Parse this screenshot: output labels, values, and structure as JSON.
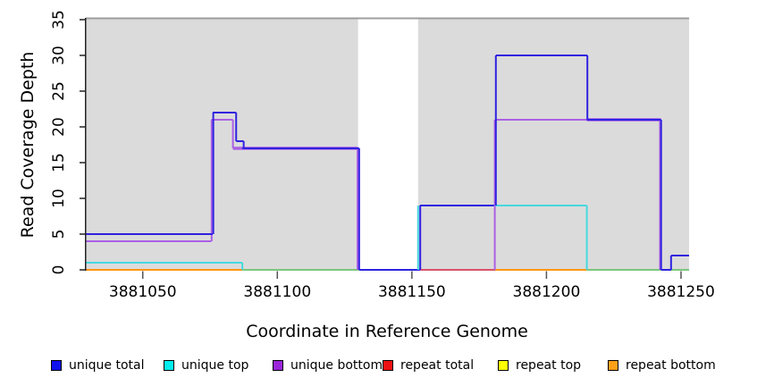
{
  "chart_data": {
    "type": "line",
    "subtype": "step-coverage-plot",
    "title": "",
    "xlabel": "Coordinate in Reference Genome",
    "ylabel": "Read Coverage Depth",
    "grid": false,
    "legend_position": "bottom",
    "xlim": [
      3881029,
      3881253
    ],
    "ylim": [
      0,
      35
    ],
    "x_ticks": [
      3881050,
      3881100,
      3881150,
      3881200,
      3881250
    ],
    "y_ticks": [
      0,
      5,
      10,
      15,
      20,
      25,
      30,
      35
    ],
    "background_color_covered": "#dbdbdb",
    "top_boundary_line": {
      "y": 35,
      "color": "#9e9e9e"
    },
    "gray_background_regions": [
      [
        3881029,
        3881130
      ],
      [
        3881152.3,
        3881253
      ]
    ],
    "white_gap_region": [
      3881130,
      3881152.3
    ],
    "layout": {
      "plot_left": 96.5,
      "plot_right": 771,
      "plot_top": 22,
      "plot_bottom": 302,
      "x_min": 3881029,
      "x_max": 3881253,
      "y_min": 0,
      "y_max": 35
    },
    "series": [
      {
        "name": "unique total",
        "color": "#2f22e0",
        "steps": [
          [
            3881029,
            5
          ],
          [
            3881076,
            22
          ],
          [
            3881085,
            18
          ],
          [
            3881087,
            17
          ],
          [
            3881130,
            0
          ],
          [
            3881153,
            9
          ],
          [
            3881181,
            30
          ],
          [
            3881215,
            21
          ],
          [
            3881243,
            0
          ],
          [
            3881246,
            2
          ],
          [
            3881253,
            2
          ]
        ]
      },
      {
        "name": "unique top",
        "color": "#45d9e0",
        "steps": [
          [
            3881029,
            1
          ],
          [
            3881087,
            0
          ],
          [
            3881153,
            9
          ],
          [
            3881215,
            0
          ],
          [
            3881253,
            0
          ]
        ]
      },
      {
        "name": "unique bottom",
        "color": "#ab60e4",
        "steps": [
          [
            3881029,
            4
          ],
          [
            3881076,
            21
          ],
          [
            3881084,
            17
          ],
          [
            3881130,
            0
          ],
          [
            3881181,
            21
          ],
          [
            3881243,
            0
          ],
          [
            3881253,
            0
          ]
        ]
      },
      {
        "name": "repeat total",
        "color": "#d8536b",
        "steps": [
          [
            3881029,
            0
          ],
          [
            3881253,
            0
          ]
        ]
      },
      {
        "name": "repeat top",
        "color": "#ffff00",
        "steps": [
          [
            3881029,
            0
          ],
          [
            3881253,
            0
          ]
        ]
      },
      {
        "name": "repeat bottom",
        "color": "#ff9614",
        "steps": [
          [
            3881029,
            0
          ],
          [
            3881253,
            0
          ]
        ]
      }
    ],
    "unlabeled_green_baseline_segments": [
      [
        3881087,
        3881130
      ],
      [
        3881215,
        3881253
      ]
    ],
    "visible_segments": [
      {
        "t": "h",
        "y": 0,
        "x1": 3881087,
        "x2": 3881130.4,
        "c": "#7cc87c"
      },
      {
        "t": "h",
        "y": 0,
        "x1": 3881215,
        "x2": 3881253,
        "c": "#7cc87c"
      },
      {
        "t": "h",
        "y": 0,
        "x1": 3881029,
        "x2": 3881087,
        "c": "#ff9614"
      },
      {
        "t": "h",
        "y": 0,
        "x1": 3881181,
        "x2": 3881215,
        "c": "#ff9614"
      },
      {
        "t": "h",
        "y": 0,
        "x1": 3881153,
        "x2": 3881181,
        "c": "#d8536b"
      },
      {
        "t": "h",
        "y": 1,
        "x1": 3881029,
        "x2": 3881087,
        "c": "#45d9e0"
      },
      {
        "t": "v",
        "x": 3881087,
        "y1": 0,
        "y2": 1,
        "c": "#45d9e0"
      },
      {
        "t": "h",
        "y": 4,
        "x1": 3881029,
        "x2": 3881075.5,
        "c": "#ab60e4"
      },
      {
        "t": "v",
        "x": 3881075.6,
        "y1": 4,
        "y2": 21,
        "c": "#ab60e4"
      },
      {
        "t": "h",
        "y": 21,
        "x1": 3881075.5,
        "x2": 3881083.5,
        "c": "#ab60e4"
      },
      {
        "t": "v",
        "x": 3881083.5,
        "y1": 17,
        "y2": 21,
        "c": "#ab60e4"
      },
      {
        "t": "h",
        "y": 17,
        "x1": 3881083.5,
        "x2": 3881130,
        "c": "#ab60e4",
        "w": 3.5
      },
      {
        "t": "v",
        "x": 3881129.8,
        "y1": 0,
        "y2": 17,
        "c": "#ab60e4"
      },
      {
        "t": "h",
        "y": 5,
        "x1": 3881029,
        "x2": 3881076,
        "c": "#2f22e0"
      },
      {
        "t": "v",
        "x": 3881076.2,
        "y1": 5,
        "y2": 22,
        "c": "#2f22e0"
      },
      {
        "t": "h",
        "y": 22,
        "x1": 3881076,
        "x2": 3881084.7,
        "c": "#2f22e0"
      },
      {
        "t": "v",
        "x": 3881084.7,
        "y1": 18,
        "y2": 22,
        "c": "#2f22e0"
      },
      {
        "t": "h",
        "y": 18,
        "x1": 3881084.7,
        "x2": 3881087.5,
        "c": "#2f22e0"
      },
      {
        "t": "v",
        "x": 3881087.5,
        "y1": 17,
        "y2": 18,
        "c": "#2f22e0"
      },
      {
        "t": "h",
        "y": 17,
        "x1": 3881087,
        "x2": 3881130.4,
        "c": "#2f22e0"
      },
      {
        "t": "v",
        "x": 3881130.4,
        "y1": 0,
        "y2": 17,
        "c": "#2f22e0"
      },
      {
        "t": "h",
        "y": 0,
        "x1": 3881130.4,
        "x2": 3881153,
        "c": "#2f22e0"
      },
      {
        "t": "v",
        "x": 3881152.3,
        "y1": 0,
        "y2": 9,
        "c": "#45d9e0"
      },
      {
        "t": "v",
        "x": 3881153.1,
        "y1": 0,
        "y2": 9,
        "c": "#2f22e0"
      },
      {
        "t": "h",
        "y": 9,
        "x1": 3881153,
        "x2": 3881181.2,
        "c": "#2f22e0"
      },
      {
        "t": "v",
        "x": 3881180.8,
        "y1": 0,
        "y2": 21,
        "c": "#ab60e4"
      },
      {
        "t": "h",
        "y": 9,
        "x1": 3881181,
        "x2": 3881215,
        "c": "#45d9e0"
      },
      {
        "t": "v",
        "x": 3881215,
        "y1": 0,
        "y2": 9,
        "c": "#45d9e0"
      },
      {
        "t": "h",
        "y": 21,
        "x1": 3881181,
        "x2": 3881215,
        "c": "#ab60e4"
      },
      {
        "t": "h",
        "y": 21,
        "x1": 3881215,
        "x2": 3881242.5,
        "c": "#ab60e4",
        "w": 3.5
      },
      {
        "t": "v",
        "x": 3881242.2,
        "y1": 0,
        "y2": 21,
        "c": "#ab60e4"
      },
      {
        "t": "v",
        "x": 3881181.2,
        "y1": 9,
        "y2": 30,
        "c": "#2f22e0"
      },
      {
        "t": "h",
        "y": 30,
        "x1": 3881181.2,
        "x2": 3881215.2,
        "c": "#2f22e0"
      },
      {
        "t": "v",
        "x": 3881215.2,
        "y1": 21,
        "y2": 30,
        "c": "#2f22e0"
      },
      {
        "t": "h",
        "y": 21,
        "x1": 3881215,
        "x2": 3881242.6,
        "c": "#2f22e0"
      },
      {
        "t": "v",
        "x": 3881242.6,
        "y1": 0,
        "y2": 21,
        "c": "#2f22e0"
      },
      {
        "t": "h",
        "y": 0,
        "x1": 3881242.6,
        "x2": 3881246.3,
        "c": "#2f22e0"
      },
      {
        "t": "v",
        "x": 3881246.3,
        "y1": 0,
        "y2": 2,
        "c": "#2f22e0"
      },
      {
        "t": "h",
        "y": 2,
        "x1": 3881246.3,
        "x2": 3881253,
        "c": "#2f22e0"
      }
    ],
    "legend": [
      {
        "label": "unique total",
        "color": "#1111ee",
        "left": 57
      },
      {
        "label": "unique top",
        "color": "#00eeee",
        "left": 183
      },
      {
        "label": "unique bottom",
        "color": "#9b26d9",
        "left": 305
      },
      {
        "label": "repeat total",
        "color": "#ee1111",
        "left": 428
      },
      {
        "label": "repeat top",
        "color": "#ffff00",
        "left": 557
      },
      {
        "label": "repeat bottom",
        "color": "#ffa018",
        "left": 680
      }
    ],
    "axis_color": "#222222",
    "tick_mark_color": "#555555"
  }
}
